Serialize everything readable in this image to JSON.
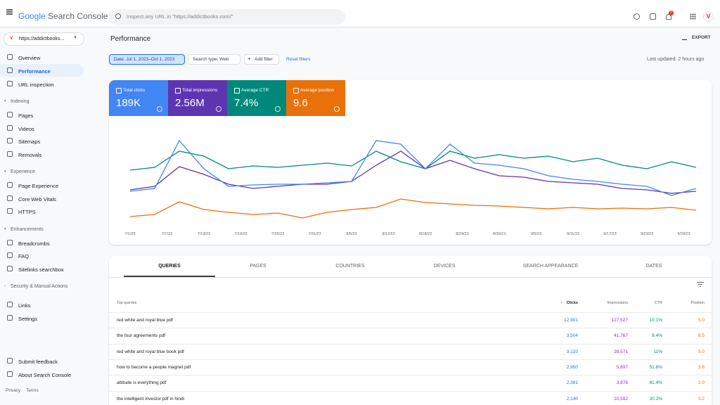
{
  "header": {
    "logo_google": "Google",
    "logo_product": "Search Console",
    "search_placeholder": "Inspect any URL in \"https://addictbooks.com/\"",
    "notifications": 3
  },
  "sidebar": {
    "property": "https://addictbooks...",
    "top": [
      "Overview",
      "Performance",
      "URL inspection"
    ],
    "groups": [
      {
        "title": "Indexing",
        "items": [
          "Pages",
          "Videos",
          "Sitemaps",
          "Removals"
        ]
      },
      {
        "title": "Experience",
        "items": [
          "Page Experience",
          "Core Web Vitals",
          "HTTPS"
        ]
      },
      {
        "title": "Enhancements",
        "items": [
          "Breadcrumbs",
          "FAQ",
          "Sitelinks searchbox"
        ]
      },
      {
        "title": "Security & Manual Actions",
        "items": []
      }
    ],
    "more": [
      "Links",
      "Settings"
    ],
    "bottom": [
      "Submit feedback",
      "About Search Console"
    ],
    "footer": [
      "Privacy",
      "Terms"
    ]
  },
  "toolbar": {
    "title": "Performance",
    "export": "EXPORT",
    "date_filter": "Date: Jul 1, 2023–Oct 1, 2023",
    "search_type": "Search type: Web",
    "add_filter": "Add filter",
    "reset": "Reset filters",
    "last_updated": "Last updated: 2 hours ago"
  },
  "chart_data": {
    "type": "line",
    "xticks": [
      "7/1/23",
      "7/7/23",
      "7/13/23",
      "7/19/23",
      "7/25/23",
      "7/31/23",
      "8/6/23",
      "8/12/23",
      "8/18/23",
      "8/24/23",
      "8/30/23",
      "9/5/23",
      "9/11/23",
      "9/17/23",
      "9/23/23",
      "9/29/23"
    ],
    "series": [
      {
        "name": "Total clicks",
        "total": "189K",
        "color": "#4285f4",
        "values": [
          48,
          52,
          120,
          80,
          55,
          57,
          58,
          58,
          60,
          62,
          120,
          115,
          80,
          115,
          88,
          85,
          80,
          70,
          65,
          62,
          58,
          55,
          42,
          52
        ]
      },
      {
        "name": "Total impressions",
        "total": "2.56M",
        "color": "#5e35b1",
        "values": [
          50,
          55,
          83,
          72,
          58,
          52,
          55,
          58,
          58,
          62,
          85,
          105,
          80,
          92,
          80,
          70,
          68,
          62,
          60,
          58,
          52,
          50,
          45,
          48
        ]
      },
      {
        "name": "Average CTR",
        "total": "7.4%",
        "color": "#00897b",
        "values": [
          78,
          82,
          105,
          98,
          80,
          84,
          82,
          85,
          88,
          84,
          105,
          90,
          80,
          105,
          95,
          100,
          95,
          98,
          90,
          95,
          85,
          80,
          90,
          82
        ]
      },
      {
        "name": "Average position",
        "total": "9.6",
        "color": "#e8710a",
        "values": [
          12,
          15,
          33,
          22,
          18,
          15,
          17,
          10,
          18,
          22,
          25,
          37,
          32,
          30,
          28,
          27,
          25,
          23,
          25,
          23,
          24,
          23,
          25,
          21
        ]
      }
    ]
  },
  "tabs": [
    "QUERIES",
    "PAGES",
    "COUNTRIES",
    "DEVICES",
    "SEARCH APPEARANCE",
    "DATES"
  ],
  "table": {
    "columns": [
      "Top queries",
      "Clicks",
      "Impressions",
      "CTR",
      "Position"
    ],
    "rows": [
      [
        "red white and royal blue pdf",
        "12,901",
        "127,527",
        "10.1%",
        "5.0"
      ],
      [
        "the four agreements pdf",
        "3,504",
        "41,767",
        "8.4%",
        "6.5"
      ],
      [
        "red white and royal blue book pdf",
        "3,133",
        "28,571",
        "11%",
        "5.0"
      ],
      [
        "how to become a people magnet pdf",
        "2,950",
        "5,697",
        "51.8%",
        "3.8"
      ],
      [
        "attitude is everything pdf",
        "2,381",
        "3,878",
        "61.4%",
        "2.0"
      ],
      [
        "the intelligent investor pdf in hindi",
        "2,140",
        "10,592",
        "20.2%",
        "3.2"
      ]
    ]
  }
}
